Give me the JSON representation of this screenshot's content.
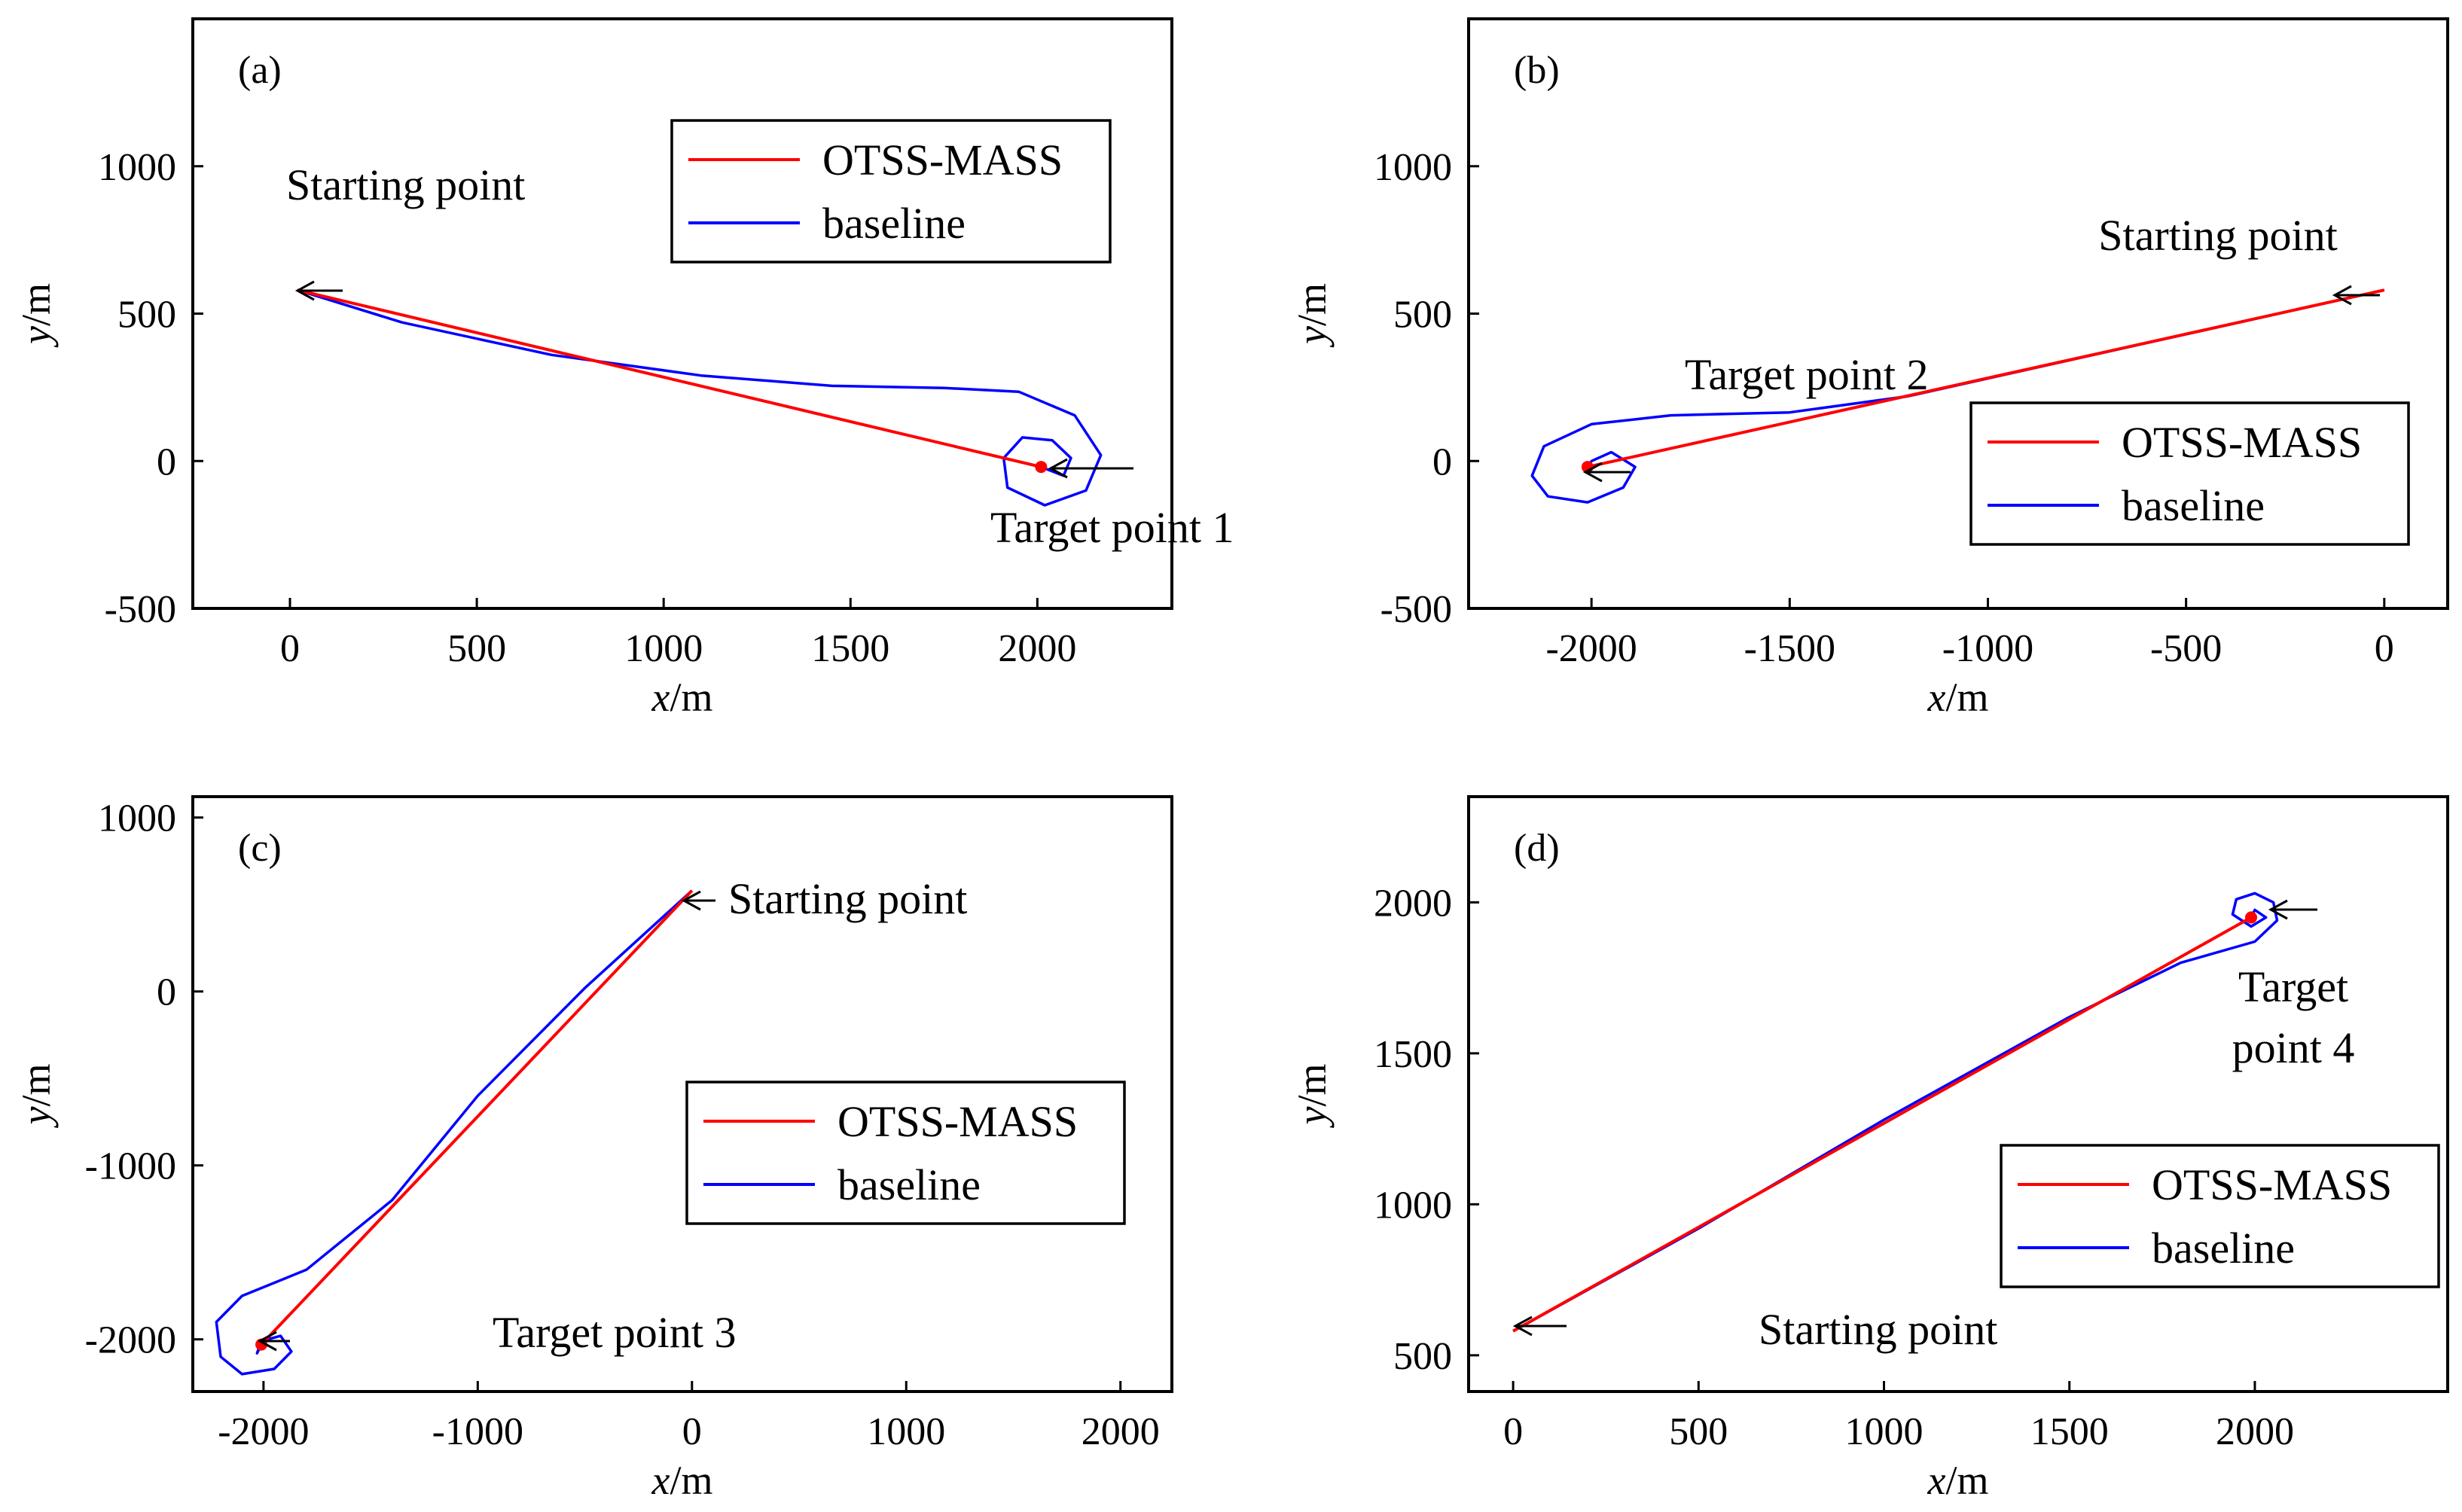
{
  "colors": {
    "otss": "#ff0000",
    "baseline": "#0000ff",
    "axis": "#000000"
  },
  "legend": {
    "otss_label": "OTSS-MASS",
    "baseline_label": "baseline"
  },
  "chart_data": [
    {
      "type": "line",
      "panel": "(a)",
      "xlabel": "x/m",
      "ylabel": "y/m",
      "xlim": [
        -260,
        2360
      ],
      "ylim": [
        -500,
        1500
      ],
      "xticks": [
        0,
        500,
        1000,
        1500,
        2000
      ],
      "yticks": [
        -500,
        0,
        500,
        1000
      ],
      "legend_position": "top-right",
      "series": [
        {
          "name": "OTSS-MASS",
          "x": [
            20,
            2010
          ],
          "y": [
            580,
            -20
          ]
        },
        {
          "name": "baseline",
          "x": [
            20,
            300,
            700,
            1100,
            1450,
            1750,
            1950,
            2100,
            2170,
            2130,
            2020,
            1920,
            1910,
            1960,
            2040,
            2090,
            2070,
            2010
          ],
          "y": [
            580,
            470,
            360,
            290,
            255,
            248,
            235,
            155,
            20,
            -100,
            -150,
            -90,
            10,
            80,
            70,
            10,
            -50,
            -20
          ]
        }
      ],
      "annotations": [
        {
          "text": "Starting point",
          "x": 20,
          "y": 580
        },
        {
          "text": "Target point 1",
          "x": 2010,
          "y": -20
        }
      ]
    },
    {
      "type": "line",
      "panel": "(b)",
      "xlabel": "x/m",
      "ylabel": "y/m",
      "xlim": [
        -2310,
        160
      ],
      "ylim": [
        -500,
        1500
      ],
      "xticks": [
        -2000,
        -1500,
        -1000,
        -500,
        0
      ],
      "yticks": [
        -500,
        0,
        500,
        1000
      ],
      "legend_position": "center-right",
      "series": [
        {
          "name": "OTSS-MASS",
          "x": [
            0,
            -2010
          ],
          "y": [
            580,
            -20
          ]
        },
        {
          "name": "baseline",
          "x": [
            0,
            -600,
            -1200,
            -1500,
            -1800,
            -2000,
            -2120,
            -2150,
            -2110,
            -2010,
            -1920,
            -1890,
            -1950,
            -2000,
            -2010
          ],
          "y": [
            580,
            400,
            220,
            165,
            155,
            125,
            50,
            -50,
            -120,
            -140,
            -90,
            -20,
            30,
            0,
            -20
          ]
        }
      ],
      "annotations": [
        {
          "text": "Starting point",
          "x": 0,
          "y": 580
        },
        {
          "text": "Target point 2",
          "x": -2010,
          "y": -20
        }
      ]
    },
    {
      "type": "line",
      "panel": "(c)",
      "xlabel": "x/m",
      "ylabel": "y/m",
      "xlim": [
        -2330,
        2240
      ],
      "ylim": [
        -2300,
        1120
      ],
      "xticks": [
        -2000,
        -1000,
        0,
        1000,
        2000
      ],
      "yticks": [
        -2000,
        -1000,
        0,
        1000
      ],
      "legend_position": "center-right",
      "series": [
        {
          "name": "OTSS-MASS",
          "x": [
            0,
            -2010
          ],
          "y": [
            580,
            -2030
          ]
        },
        {
          "name": "baseline",
          "x": [
            0,
            -500,
            -1000,
            -1400,
            -1800,
            -2100,
            -2220,
            -2200,
            -2100,
            -1950,
            -1870,
            -1920,
            -2010,
            -2030,
            -2010
          ],
          "y": [
            580,
            20,
            -600,
            -1200,
            -1600,
            -1750,
            -1900,
            -2100,
            -2200,
            -2170,
            -2070,
            -1980,
            -2010,
            -2080,
            -2030
          ]
        }
      ],
      "annotations": [
        {
          "text": "Starting point",
          "x": 0,
          "y": 580
        },
        {
          "text": "Target point 3",
          "x": -2010,
          "y": -2030
        }
      ]
    },
    {
      "type": "line",
      "panel": "(d)",
      "xlabel": "x/m",
      "ylabel": "y/m",
      "xlim": [
        -120,
        2520
      ],
      "ylim": [
        380,
        2350
      ],
      "xticks": [
        0,
        500,
        1000,
        1500,
        2000
      ],
      "yticks": [
        500,
        1000,
        1500,
        2000
      ],
      "legend_position": "center-right",
      "series": [
        {
          "name": "OTSS-MASS",
          "x": [
            0,
            1990
          ],
          "y": [
            580,
            1950
          ]
        },
        {
          "name": "baseline",
          "x": [
            0,
            500,
            1000,
            1500,
            1800,
            2000,
            2060,
            2050,
            2000,
            1950,
            1940,
            1990,
            2030,
            2000,
            1990
          ],
          "y": [
            580,
            920,
            1280,
            1620,
            1800,
            1870,
            1940,
            2000,
            2030,
            2010,
            1960,
            1920,
            1950,
            1975,
            1950
          ]
        }
      ],
      "annotations": [
        {
          "text": "Starting point",
          "x": 0,
          "y": 580
        },
        {
          "text": "Target",
          "x": 1990,
          "y": 1950
        },
        {
          "text": "point 4",
          "x": 1990,
          "y": 1950
        }
      ]
    }
  ]
}
